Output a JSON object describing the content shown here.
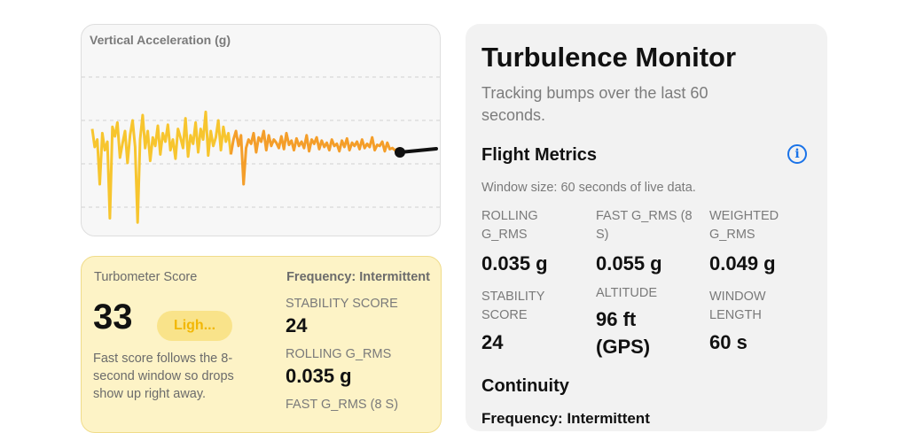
{
  "chart": {
    "title": "Vertical Acceleration (g)",
    "colors": {
      "early": "#f7c52e",
      "late": "#f49e2a",
      "marker": "#111111",
      "grid": "#cccccc"
    },
    "samples": [
      0.22,
      0.05,
      0.12,
      -0.3,
      0.18,
      0.02,
      0.1,
      -0.62,
      0.24,
      0.15,
      0.28,
      -0.05,
      0.08,
      0.2,
      -0.1,
      0.16,
      0.3,
      0.05,
      -0.66,
      0.12,
      0.35,
      0.04,
      0.2,
      -0.08,
      0.14,
      0.06,
      0.25,
      -0.02,
      0.18,
      0.1,
      0.26,
      0.02,
      0.12,
      -0.06,
      0.22,
      0.14,
      0.04,
      0.32,
      -0.04,
      0.16,
      0.08,
      0.28,
      0.0,
      0.22,
      0.12,
      0.38,
      -0.03,
      0.2,
      0.06,
      0.14,
      0.3,
      0.02,
      0.24,
      0.1,
      0.18,
      -0.02,
      0.12,
      0.2,
      0.06,
      0.16,
      -0.3,
      0.04,
      0.12,
      0.08,
      0.18,
      0.0,
      0.14,
      0.1,
      0.2,
      0.02,
      0.16,
      0.06,
      0.12,
      0.09,
      0.04,
      0.15,
      0.03,
      0.18,
      0.07,
      0.11,
      0.02,
      0.13,
      0.06,
      0.1,
      0.04,
      0.16,
      0.01,
      0.12,
      0.08,
      0.14,
      0.03,
      0.11,
      0.05,
      0.09,
      0.02,
      0.12,
      0.06,
      0.08,
      0.01,
      0.11,
      0.05,
      0.13,
      0.02,
      0.09,
      0.06,
      0.1,
      0.03,
      0.12,
      0.04,
      0.08,
      0.05,
      0.14,
      0.02,
      0.07,
      0.06,
      0.1,
      0.01,
      0.09,
      0.03,
      0.04,
      0.02,
      0.03,
      0.02
    ]
  },
  "score": {
    "label": "Turbometer Score",
    "frequency": "Frequency: Intermittent",
    "value": "33",
    "level": "Ligh...",
    "note": "Fast score follows the 8-second window so drops show up right away.",
    "stability_label": "STABILITY SCORE",
    "stability_value": "24",
    "rolling_label": "ROLLING G_RMS",
    "rolling_value": "0.035 g",
    "fast_label": "FAST G_RMS (8 S)"
  },
  "panel": {
    "title": "Turbulence Monitor",
    "subtitle": "Tracking bumps over the last 60 seconds.",
    "metrics_title": "Flight Metrics",
    "window_note": "Window size: 60 seconds of live data.",
    "metrics": [
      {
        "label": "ROLLING G_RMS",
        "value": "0.035 g"
      },
      {
        "label": "FAST G_RMS (8 S)",
        "value": "0.055 g"
      },
      {
        "label": "WEIGHTED G_RMS",
        "value": "0.049 g"
      },
      {
        "label": "STABILITY SCORE",
        "value": "24"
      },
      {
        "label": "ALTITUDE",
        "value": "96 ft (GPS)"
      },
      {
        "label": "WINDOW LENGTH",
        "value": "60 s"
      }
    ],
    "continuity_title": "Continuity",
    "continuity_line": "Frequency: Intermittent",
    "info_icon_glyph": "i"
  }
}
